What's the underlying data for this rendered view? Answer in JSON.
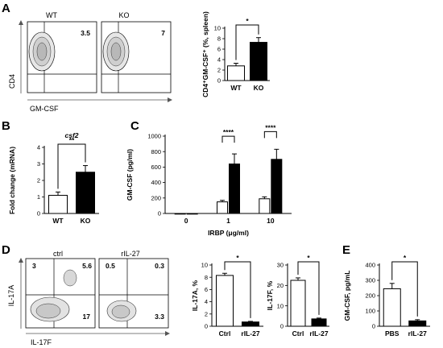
{
  "panels": [
    {
      "id": "A",
      "label": "A"
    },
    {
      "id": "B",
      "label": "B"
    },
    {
      "id": "C",
      "label": "C"
    },
    {
      "id": "D",
      "label": "D"
    },
    {
      "id": "E",
      "label": "E"
    }
  ],
  "flow_A": {
    "x_label": "GM-CSF",
    "y_label": "CD4",
    "plots": [
      {
        "title": "WT",
        "quadrant_values": {
          "upper_right": "3.5"
        }
      },
      {
        "title": "KO",
        "quadrant_values": {
          "upper_right": "7"
        }
      }
    ]
  },
  "flow_D": {
    "x_label": "IL-17F",
    "y_label": "IL-17A",
    "plots": [
      {
        "title": "ctrl",
        "quadrant_values": {
          "upper_left": "3",
          "upper_right": "5.6",
          "lower_right": "17"
        }
      },
      {
        "title": "rIL-27",
        "quadrant_values": {
          "upper_left": "0.5",
          "upper_right": "0.3",
          "lower_right": "3.3"
        }
      }
    ]
  },
  "chart_data": [
    {
      "id": "A_bar",
      "type": "bar",
      "categories": [
        "WT",
        "KO"
      ],
      "values": [
        2.8,
        7.3
      ],
      "errors": [
        0.5,
        0.9
      ],
      "fills": [
        "#ffffff",
        "#000000"
      ],
      "ylabel": "CD4⁺GM-CSF⁺ (%, spleen)",
      "ylim": [
        0,
        10
      ],
      "yticks": [
        "0",
        "2",
        "4",
        "6",
        "8",
        "10"
      ],
      "significance": "*"
    },
    {
      "id": "B",
      "type": "bar",
      "title": "csf2",
      "categories": [
        "WT",
        "KO"
      ],
      "values": [
        1.1,
        2.5
      ],
      "errors": [
        0.2,
        0.4
      ],
      "fills": [
        "#ffffff",
        "#000000"
      ],
      "ylabel": "Fold change (mRNA)",
      "ylim": [
        0,
        4
      ],
      "yticks": [
        "0",
        "1",
        "2",
        "3",
        "4"
      ],
      "significance": "**"
    },
    {
      "id": "C",
      "type": "bar",
      "categories": [
        "0",
        "1",
        "10"
      ],
      "xlabel": "IRBP (μg/ml)",
      "ylabel": "GM-CSF (pg/ml)",
      "ylim": [
        0,
        1000
      ],
      "yticks": [
        "0",
        "200",
        "400",
        "600",
        "800",
        "1000"
      ],
      "series": [
        {
          "values": [
            0,
            150,
            190
          ],
          "errors": [
            0,
            20,
            25
          ],
          "fill": "#ffffff"
        },
        {
          "values": [
            0,
            640,
            700
          ],
          "errors": [
            0,
            130,
            130
          ],
          "fill": "#000000"
        }
      ],
      "significance": [
        "****",
        "****"
      ]
    },
    {
      "id": "D_IL17A",
      "type": "bar",
      "categories": [
        "Ctrl",
        "rIL-27"
      ],
      "values": [
        8.3,
        0.7
      ],
      "errors": [
        0.35,
        0.1
      ],
      "fills": [
        "#ffffff",
        "#000000"
      ],
      "ylabel": "IL-17A, %",
      "ylim": [
        0,
        10
      ],
      "yticks": [
        "0",
        "2",
        "4",
        "6",
        "8",
        "10"
      ],
      "significance": "*"
    },
    {
      "id": "D_IL17F",
      "type": "bar",
      "categories": [
        "Ctrl",
        "rIL-27"
      ],
      "values": [
        22.5,
        3.6
      ],
      "errors": [
        1.2,
        0.4
      ],
      "fills": [
        "#ffffff",
        "#000000"
      ],
      "ylabel": "IL-17F, %",
      "ylim": [
        0,
        30
      ],
      "yticks": [
        "0",
        "10",
        "20",
        "30"
      ],
      "significance": "*"
    },
    {
      "id": "E",
      "type": "bar",
      "categories": [
        "PBS",
        "rIL-27"
      ],
      "values": [
        245,
        35
      ],
      "errors": [
        35,
        8
      ],
      "fills": [
        "#ffffff",
        "#000000"
      ],
      "ylabel": "GM-CSF, pg/mL",
      "ylim": [
        0,
        400
      ],
      "yticks": [
        "0",
        "100",
        "200",
        "300",
        "400"
      ],
      "significance": "*"
    }
  ]
}
